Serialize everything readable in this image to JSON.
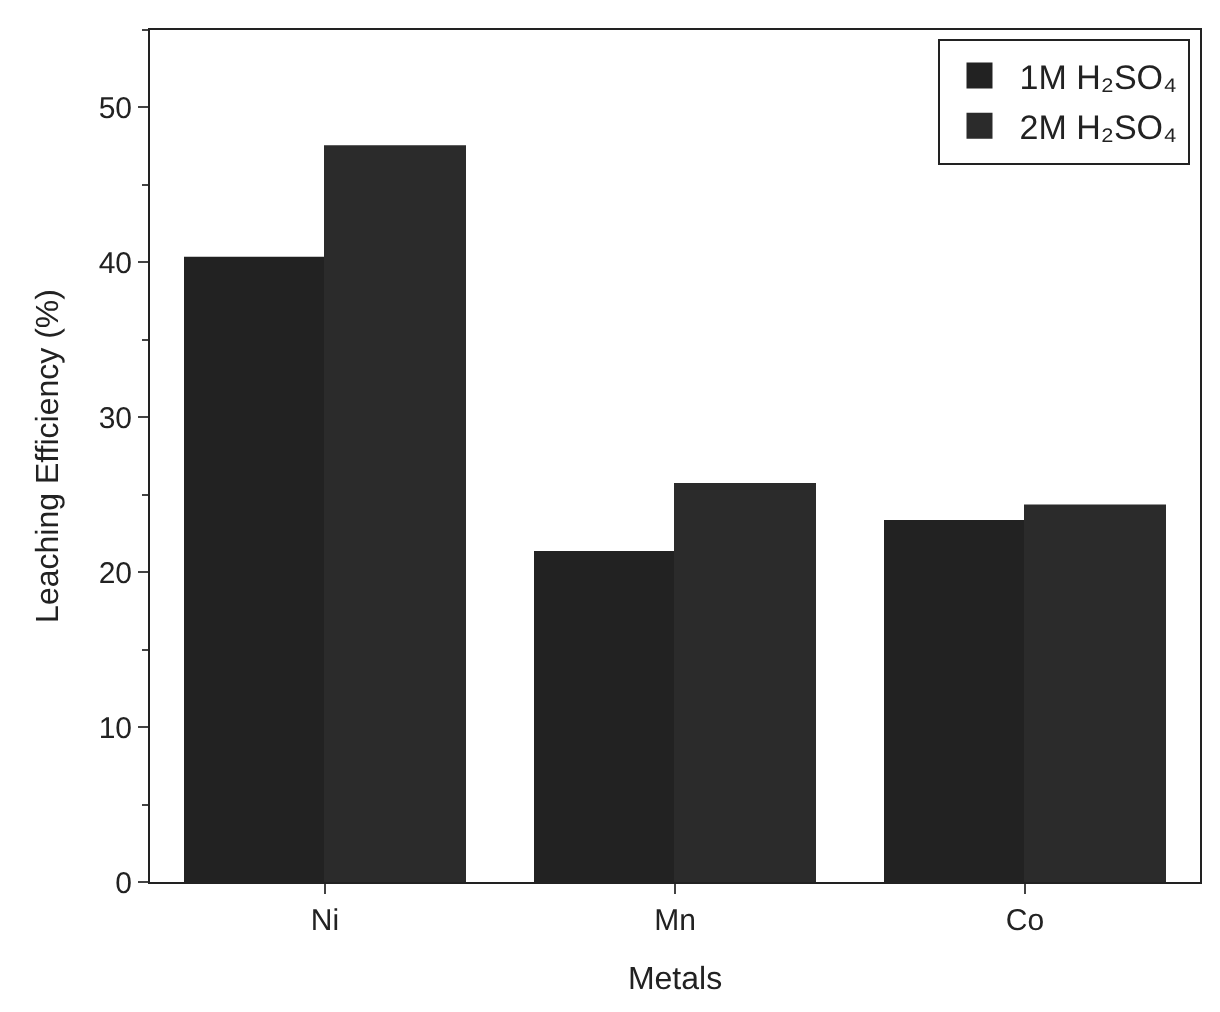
{
  "chart_data": {
    "type": "bar",
    "xlabel": "Metals",
    "ylabel": "Leaching Efficiency (%)",
    "categories": [
      "Ni",
      "Mn",
      "Co"
    ],
    "series": [
      {
        "name": "1M H₂SO₄",
        "color": "#222222",
        "values": [
          40.3,
          21.3,
          23.3
        ]
      },
      {
        "name": "2M H₂SO₄",
        "color": "#2b2b2b",
        "values": [
          47.5,
          25.7,
          24.3
        ]
      }
    ],
    "ylim": [
      0,
      55
    ],
    "yticks": [
      0,
      10,
      20,
      30,
      40,
      50
    ],
    "legend": "top right"
  }
}
